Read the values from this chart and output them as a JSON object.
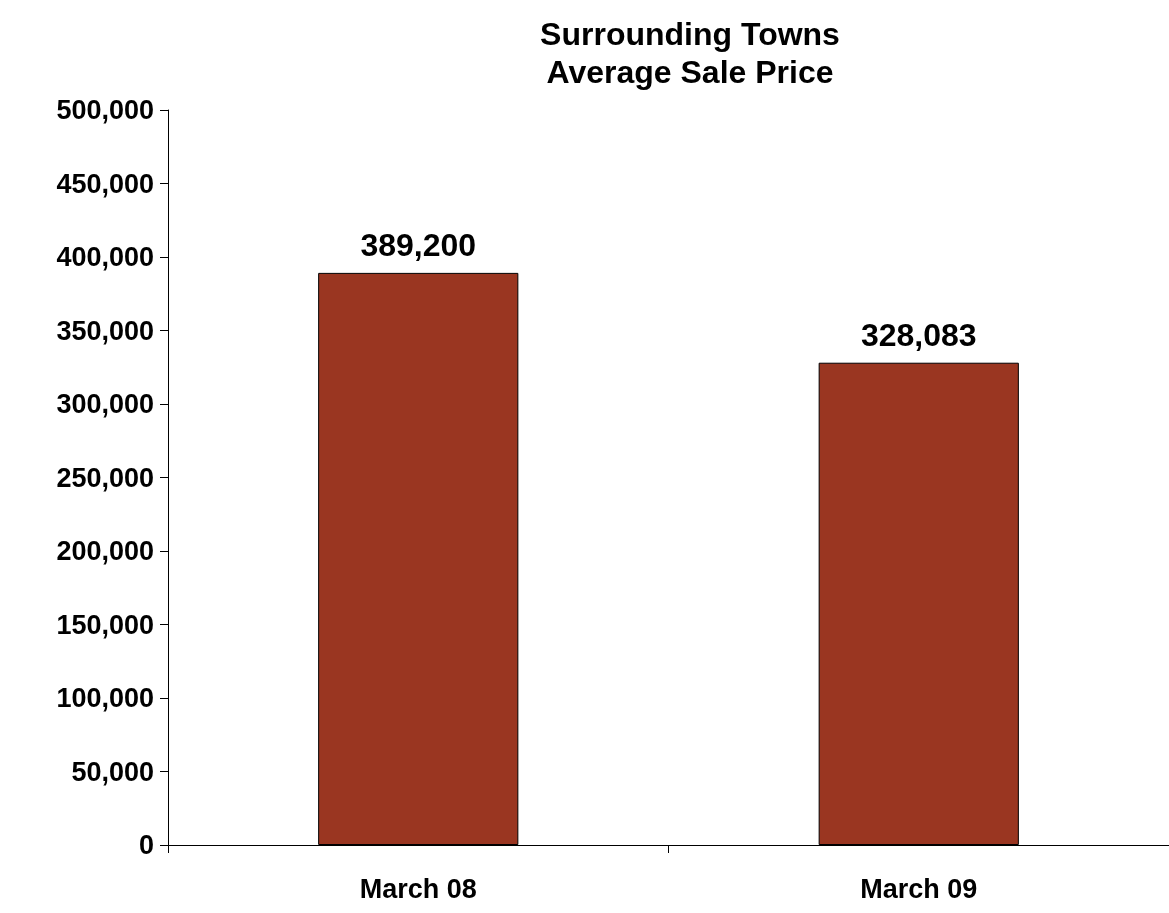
{
  "chart_data": {
    "type": "bar",
    "title": "Surrounding Towns\nAverage Sale Price",
    "categories": [
      "March 08",
      "March 09"
    ],
    "values": [
      389200,
      328083
    ],
    "value_labels": [
      "389,200",
      "328,083"
    ],
    "color": "#9a3621",
    "ylim": [
      0,
      500000
    ],
    "yticks": [
      0,
      {
        "value": 50000,
        "label": "50,000"
      },
      {
        "value": 100000,
        "label": "100,000"
      },
      {
        "value": 150000,
        "label": "150,000"
      },
      {
        "value": 200000,
        "label": "200,000"
      },
      {
        "value": 250000,
        "label": "250,000"
      },
      {
        "value": 300000,
        "label": "300,000"
      },
      {
        "value": 350000,
        "label": "350,000"
      },
      {
        "value": 400000,
        "label": "400,000"
      },
      {
        "value": 450000,
        "label": "450,000"
      },
      {
        "value": 500000,
        "label": "500,000"
      }
    ],
    "grid": false
  }
}
